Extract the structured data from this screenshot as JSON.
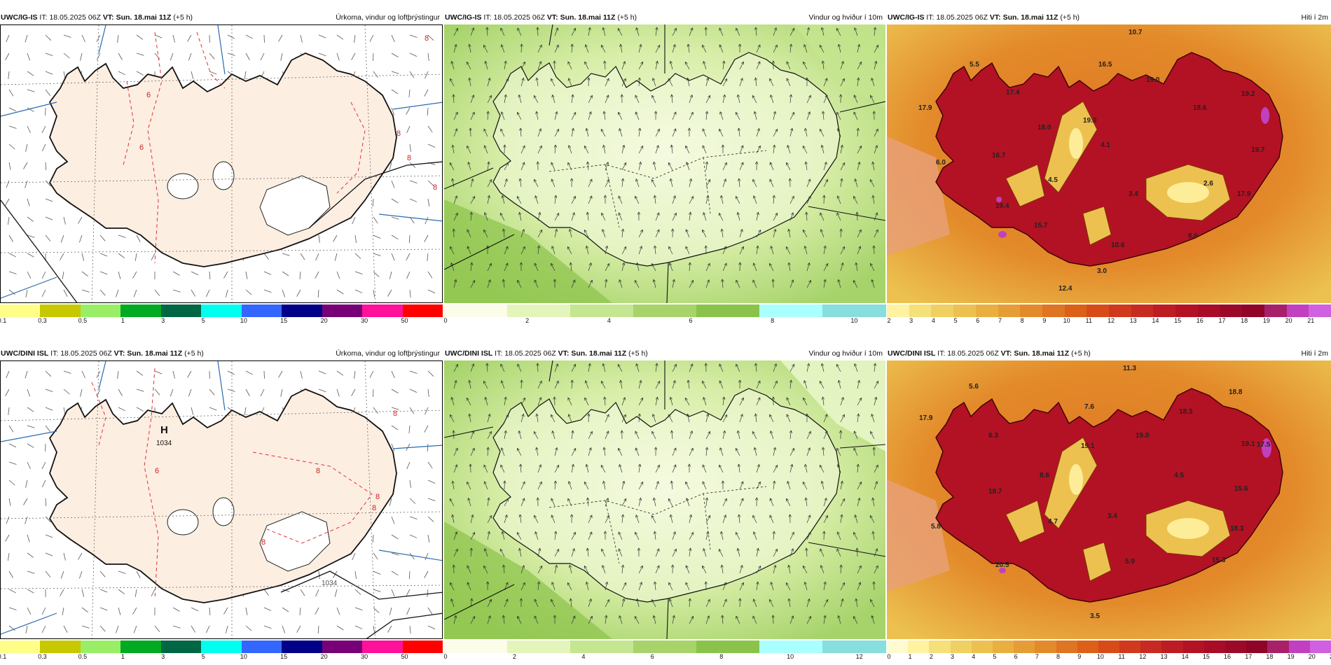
{
  "rows": [
    {
      "panels": [
        {
          "id": "precip",
          "model": "UWC/IG-IS",
          "it_label": "IT:",
          "it_value": "18.05.2025 06Z",
          "vt_label": "VT:",
          "vt_value": "Sun. 18.mai 11Z",
          "offset": "(+5 h)",
          "title": "Úrkoma, vindur og loftþrýstingur",
          "colorbar": {
            "colors": [
              "#ffff88",
              "#c8c800",
              "#99ee66",
              "#00aa22",
              "#006644",
              "#00ffee",
              "#3366ff",
              "#000088",
              "#770077",
              "#ff1199",
              "#ff0000"
            ],
            "ticks": [
              "0.1",
              "0.3",
              "0.5",
              "1",
              "3",
              "5",
              "10",
              "15",
              "20",
              "30",
              "50"
            ]
          },
          "annotations": [
            "8",
            "8",
            "8",
            "6",
            "8",
            "6"
          ]
        },
        {
          "id": "wind",
          "model": "UWC/IG-IS",
          "it_label": "IT:",
          "it_value": "18.05.2025 06Z",
          "vt_label": "VT:",
          "vt_value": "Sun. 18.mai 11Z",
          "offset": "(+5 h)",
          "title": "Vindur og hviður í 10m",
          "colorbar": {
            "colors": [
              "#fbfde8",
              "#e4f5bb",
              "#c5e690",
              "#a6d36a",
              "#8bc34a",
              "#aaffff",
              "#88dddd"
            ],
            "ticks": [
              "0",
              "2",
              "4",
              "6",
              "8",
              "10"
            ]
          }
        },
        {
          "id": "temp",
          "model": "UWC/IG-IS",
          "it_label": "IT:",
          "it_value": "18.05.2025 06Z",
          "vt_label": "VT:",
          "vt_value": "Sun. 18.mai 11Z",
          "offset": "(+5 h)",
          "title": "Hiti í 2m",
          "colorbar": {
            "colors": [
              "#fff2a0",
              "#f5e07a",
              "#f0d060",
              "#ecc150",
              "#e9b040",
              "#e69d35",
              "#e38a2a",
              "#df7422",
              "#dc6018",
              "#d84a18",
              "#cf3a1c",
              "#c62a20",
              "#bd1c22",
              "#b31224",
              "#a80c26",
              "#9c0828",
              "#900428",
              "#a8206a",
              "#c040c0",
              "#d060e0"
            ],
            "ticks": [
              "2",
              "3",
              "4",
              "5",
              "6",
              "7",
              "8",
              "9",
              "10",
              "11",
              "12",
              "13",
              "14",
              "15",
              "16",
              "17",
              "18",
              "19",
              "20",
              "21"
            ]
          },
          "values": [
            "10.7",
            "5.5",
            "16.5",
            "19.0",
            "17.4",
            "17.9",
            "18.6",
            "19.2",
            "18.0",
            "19.0",
            "4.1",
            "19.7",
            "16.7",
            "4.5",
            "6.0",
            "3.4",
            "2.6",
            "17.9",
            "19.4",
            "15.7",
            "10.6",
            "8.6",
            "3.0",
            "12.4"
          ]
        }
      ]
    },
    {
      "panels": [
        {
          "id": "precip",
          "model": "UWC/DINI ISL",
          "it_label": "IT:",
          "it_value": "18.05.2025 06Z",
          "vt_label": "VT:",
          "vt_value": "Sun. 18.mai 11Z",
          "offset": "(+5 h)",
          "title": "Úrkoma, vindur og loftþrýstingur",
          "high_label": "H",
          "high_value": "1034",
          "isobar_label": "1034",
          "colorbar": {
            "colors": [
              "#ffff88",
              "#c8c800",
              "#99ee66",
              "#00aa22",
              "#006644",
              "#00ffee",
              "#3366ff",
              "#000088",
              "#770077",
              "#ff1199",
              "#ff0000"
            ],
            "ticks": [
              "0.1",
              "0.3",
              "0.5",
              "1",
              "3",
              "5",
              "10",
              "15",
              "20",
              "30",
              "50"
            ]
          },
          "annotations": [
            "8",
            "8",
            "8",
            "6",
            "8",
            "8"
          ]
        },
        {
          "id": "wind",
          "model": "UWC/DINI ISL",
          "it_label": "IT:",
          "it_value": "18.05.2025 06Z",
          "vt_label": "VT:",
          "vt_value": "Sun. 18.mai 11Z",
          "offset": "(+5 h)",
          "title": "Vindur og hviður í 10m",
          "colorbar": {
            "colors": [
              "#fbfde8",
              "#e4f5bb",
              "#c5e690",
              "#a6d36a",
              "#8bc34a",
              "#aaffff",
              "#88dddd"
            ],
            "ticks": [
              "0",
              "2",
              "4",
              "6",
              "8",
              "10",
              "12"
            ]
          }
        },
        {
          "id": "temp",
          "model": "UWC/DINI ISL",
          "it_label": "IT:",
          "it_value": "18.05.2025 06Z",
          "vt_label": "VT:",
          "vt_value": "Sun. 18.mai 11Z",
          "offset": "(+5 h)",
          "title": "Hiti í 2m",
          "colorbar": {
            "colors": [
              "#fffbd0",
              "#fff2a0",
              "#f5e07a",
              "#f0d060",
              "#ecc150",
              "#e9b040",
              "#e69d35",
              "#e38a2a",
              "#df7422",
              "#dc6018",
              "#d84a18",
              "#cf3a1c",
              "#c62a20",
              "#bd1c22",
              "#b31224",
              "#a80c26",
              "#9c0828",
              "#900428",
              "#a8206a",
              "#c040c0",
              "#d060e0"
            ],
            "ticks": [
              "0",
              "1",
              "2",
              "3",
              "4",
              "5",
              "6",
              "7",
              "8",
              "9",
              "10",
              "11",
              "12",
              "13",
              "14",
              "15",
              "16",
              "17",
              "18",
              "19",
              "20",
              "21"
            ]
          },
          "values": [
            "11.3",
            "5.6",
            "18.8",
            "7.6",
            "18.3",
            "17.9",
            "6.3",
            "19.0",
            "19.1",
            "19.1",
            "17.5",
            "8.6",
            "4.5",
            "15.6",
            "18.7",
            "4.7",
            "3.4",
            "18.3",
            "5.8",
            "15.3",
            "20.5",
            "5.9",
            "3.5"
          ]
        }
      ]
    }
  ]
}
